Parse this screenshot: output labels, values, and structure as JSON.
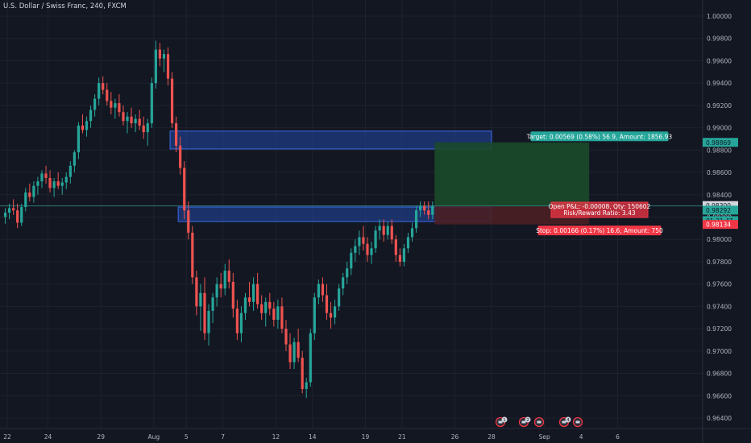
{
  "header": {
    "symbol_title": "U.S. Dollar / Swiss Franc, 240, FXCM"
  },
  "colors": {
    "background": "#131722",
    "grid": "#1e222d",
    "up": "#26a69a",
    "down": "#ef5350",
    "zone_fill": "#1f3b82",
    "zone_border": "#3b6cf0",
    "target_fill": "#1b4a2a",
    "stop_fill": "#4a1f24",
    "label_green": "#26a69a",
    "label_red": "#f23645"
  },
  "price_axis": {
    "min": 0.9634,
    "max": 1.0012,
    "ticks": [
      "1.00000",
      "0.99800",
      "0.99600",
      "0.99400",
      "0.99200",
      "0.99000",
      "0.98800",
      "0.98600",
      "0.98400",
      "0.98200",
      "0.98000",
      "0.97800",
      "0.97600",
      "0.97400",
      "0.97200",
      "0.97000",
      "0.96800",
      "0.96600",
      "0.96400"
    ],
    "markers": [
      {
        "label": "0.98869",
        "value": 0.98869,
        "color": "#26a69a",
        "text_color": "#131722"
      },
      {
        "label": "0.98300",
        "value": 0.98303,
        "color": "#d1d4dc",
        "text_color": "#131722"
      },
      {
        "label": "0.98292",
        "value": 0.98262,
        "color": "#26a69a",
        "text_color": "#131722"
      },
      {
        "label": "01:31:47",
        "value": 0.98168,
        "color": "#26a69a",
        "text_color": "#131722"
      },
      {
        "label": "0.98134",
        "value": 0.98134,
        "color": "#f23645",
        "text_color": "#ffffff"
      }
    ]
  },
  "time_axis": {
    "labels": [
      {
        "text": "22",
        "bar": 1
      },
      {
        "text": "24",
        "bar": 11
      },
      {
        "text": "29",
        "bar": 24
      },
      {
        "text": "Aug",
        "bar": 37
      },
      {
        "text": "5",
        "bar": 45
      },
      {
        "text": "7",
        "bar": 54
      },
      {
        "text": "12",
        "bar": 67
      },
      {
        "text": "14",
        "bar": 76
      },
      {
        "text": "19",
        "bar": 89
      },
      {
        "text": "21",
        "bar": 98
      },
      {
        "text": "26",
        "bar": 111
      },
      {
        "text": "28",
        "bar": 120
      },
      {
        "text": "Sep",
        "bar": 133
      },
      {
        "text": "4",
        "bar": 142
      },
      {
        "text": "6",
        "bar": 151
      }
    ]
  },
  "zones": [
    {
      "name": "upper-zone",
      "start_bar": 41,
      "end_bar": 120,
      "top": 0.9897,
      "bottom": 0.9881
    },
    {
      "name": "lower-zone",
      "start_bar": 43,
      "end_bar": 120,
      "top": 0.9829,
      "bottom": 0.9816
    }
  ],
  "position": {
    "start_bar": 106,
    "end_bar": 144,
    "entry": 0.983,
    "target": 0.98869,
    "stop": 0.98134,
    "target_label": "Target: 0.00569 (0.58%) 56.9, Amount: 1856.93",
    "open_label_1": "Open P&L: -0.00008, Qty: 150602",
    "open_label_2": "Risk/Reward Ratio: 3.43",
    "stop_label": "Stop: 0.00166 (0.17%) 16.6, Amount: 750"
  },
  "bottom_icons": [
    {
      "name": "news-icon",
      "badge": "1"
    },
    {
      "name": "news-icon",
      "badge": "2"
    },
    {
      "name": "flag-icon",
      "badge": ""
    },
    {
      "name": "news-icon",
      "badge": "4"
    },
    {
      "name": "flag-icon",
      "badge": ""
    }
  ],
  "chart_data": {
    "type": "candlestick",
    "title": "U.S. Dollar / Swiss Franc, 240, FXCM",
    "ylim": [
      0.9634,
      1.0012
    ],
    "candles": [
      [
        0.982,
        0.9828,
        0.9814,
        0.9824
      ],
      [
        0.9824,
        0.9832,
        0.9818,
        0.9828
      ],
      [
        0.9828,
        0.9836,
        0.9822,
        0.9826
      ],
      [
        0.9826,
        0.9832,
        0.981,
        0.9815
      ],
      [
        0.9815,
        0.9832,
        0.9812,
        0.9829
      ],
      [
        0.9829,
        0.9846,
        0.9825,
        0.9842
      ],
      [
        0.9842,
        0.985,
        0.9834,
        0.9838
      ],
      [
        0.9838,
        0.9852,
        0.9833,
        0.9848
      ],
      [
        0.9848,
        0.9856,
        0.984,
        0.9852
      ],
      [
        0.9852,
        0.9862,
        0.9846,
        0.9859
      ],
      [
        0.9859,
        0.9866,
        0.985,
        0.9855
      ],
      [
        0.9855,
        0.9862,
        0.9842,
        0.9846
      ],
      [
        0.9846,
        0.9855,
        0.9838,
        0.9852
      ],
      [
        0.9852,
        0.986,
        0.9845,
        0.9848
      ],
      [
        0.9848,
        0.9855,
        0.984,
        0.9851
      ],
      [
        0.9851,
        0.986,
        0.9845,
        0.9856
      ],
      [
        0.9856,
        0.987,
        0.985,
        0.9866
      ],
      [
        0.9866,
        0.988,
        0.986,
        0.9878
      ],
      [
        0.9878,
        0.9905,
        0.9872,
        0.9902
      ],
      [
        0.9902,
        0.9912,
        0.9895,
        0.9898
      ],
      [
        0.9898,
        0.991,
        0.9892,
        0.9906
      ],
      [
        0.9906,
        0.992,
        0.99,
        0.9916
      ],
      [
        0.9916,
        0.993,
        0.991,
        0.9926
      ],
      [
        0.9926,
        0.9945,
        0.992,
        0.994
      ],
      [
        0.994,
        0.9946,
        0.993,
        0.9934
      ],
      [
        0.9934,
        0.994,
        0.992,
        0.9924
      ],
      [
        0.9924,
        0.9932,
        0.9912,
        0.9918
      ],
      [
        0.9918,
        0.9926,
        0.9908,
        0.9922
      ],
      [
        0.9922,
        0.993,
        0.991,
        0.9914
      ],
      [
        0.9914,
        0.992,
        0.9902,
        0.9906
      ],
      [
        0.9906,
        0.9914,
        0.9895,
        0.991
      ],
      [
        0.991,
        0.9918,
        0.99,
        0.9904
      ],
      [
        0.9904,
        0.9912,
        0.9896,
        0.9908
      ],
      [
        0.9908,
        0.9916,
        0.9898,
        0.9902
      ],
      [
        0.9902,
        0.991,
        0.989,
        0.9896
      ],
      [
        0.9896,
        0.9908,
        0.9884,
        0.9904
      ],
      [
        0.9904,
        0.9945,
        0.99,
        0.994
      ],
      [
        0.994,
        0.9978,
        0.9935,
        0.997
      ],
      [
        0.997,
        0.9976,
        0.9955,
        0.9962
      ],
      [
        0.9962,
        0.997,
        0.995,
        0.9966
      ],
      [
        0.9966,
        0.9972,
        0.9938,
        0.9944
      ],
      [
        0.9944,
        0.995,
        0.99,
        0.9904
      ],
      [
        0.9904,
        0.991,
        0.9878,
        0.9884
      ],
      [
        0.9884,
        0.9892,
        0.9858,
        0.9864
      ],
      [
        0.9864,
        0.987,
        0.9818,
        0.9826
      ],
      [
        0.9826,
        0.9834,
        0.98,
        0.9806
      ],
      [
        0.9806,
        0.9812,
        0.976,
        0.9766
      ],
      [
        0.9766,
        0.9772,
        0.9732,
        0.974
      ],
      [
        0.974,
        0.976,
        0.9718,
        0.9752
      ],
      [
        0.9752,
        0.9766,
        0.971,
        0.9716
      ],
      [
        0.9716,
        0.9742,
        0.9705,
        0.9736
      ],
      [
        0.9736,
        0.9752,
        0.9725,
        0.9748
      ],
      [
        0.9748,
        0.9766,
        0.974,
        0.976
      ],
      [
        0.976,
        0.977,
        0.9748,
        0.9756
      ],
      [
        0.9756,
        0.9778,
        0.975,
        0.9772
      ],
      [
        0.9772,
        0.9782,
        0.9756,
        0.9762
      ],
      [
        0.9762,
        0.977,
        0.973,
        0.9738
      ],
      [
        0.9738,
        0.9746,
        0.971,
        0.9716
      ],
      [
        0.9716,
        0.974,
        0.9708,
        0.9734
      ],
      [
        0.9734,
        0.9752,
        0.9728,
        0.9748
      ],
      [
        0.9748,
        0.9762,
        0.974,
        0.9744
      ],
      [
        0.9744,
        0.9766,
        0.9736,
        0.976
      ],
      [
        0.976,
        0.977,
        0.9738,
        0.9742
      ],
      [
        0.9742,
        0.975,
        0.9728,
        0.9734
      ],
      [
        0.9734,
        0.9748,
        0.9722,
        0.9744
      ],
      [
        0.9744,
        0.9752,
        0.9732,
        0.9738
      ],
      [
        0.9738,
        0.9744,
        0.9722,
        0.9728
      ],
      [
        0.9728,
        0.9746,
        0.972,
        0.974
      ],
      [
        0.974,
        0.9748,
        0.9716,
        0.972
      ],
      [
        0.972,
        0.9728,
        0.97,
        0.9706
      ],
      [
        0.9706,
        0.9716,
        0.9684,
        0.969
      ],
      [
        0.969,
        0.9712,
        0.9684,
        0.9708
      ],
      [
        0.9708,
        0.972,
        0.969,
        0.9694
      ],
      [
        0.9694,
        0.97,
        0.9662,
        0.9666
      ],
      [
        0.9666,
        0.9676,
        0.9658,
        0.9672
      ],
      [
        0.9672,
        0.972,
        0.9668,
        0.9716
      ],
      [
        0.9716,
        0.9752,
        0.971,
        0.9748
      ],
      [
        0.9748,
        0.9764,
        0.9742,
        0.976
      ],
      [
        0.976,
        0.9766,
        0.9744,
        0.975
      ],
      [
        0.975,
        0.976,
        0.9728,
        0.9734
      ],
      [
        0.9734,
        0.9744,
        0.972,
        0.973
      ],
      [
        0.973,
        0.9746,
        0.9724,
        0.974
      ],
      [
        0.974,
        0.976,
        0.9736,
        0.9756
      ],
      [
        0.9756,
        0.977,
        0.975,
        0.9766
      ],
      [
        0.9766,
        0.978,
        0.976,
        0.9774
      ],
      [
        0.9774,
        0.9792,
        0.9768,
        0.9788
      ],
      [
        0.9788,
        0.98,
        0.978,
        0.9794
      ],
      [
        0.9794,
        0.9808,
        0.9786,
        0.9802
      ],
      [
        0.9802,
        0.9812,
        0.979,
        0.9796
      ],
      [
        0.9796,
        0.9802,
        0.978,
        0.9786
      ],
      [
        0.9786,
        0.9798,
        0.9778,
        0.9792
      ],
      [
        0.9792,
        0.9812,
        0.9788,
        0.9808
      ],
      [
        0.9808,
        0.9818,
        0.98,
        0.9812
      ],
      [
        0.9812,
        0.9818,
        0.9798,
        0.9804
      ],
      [
        0.9804,
        0.9816,
        0.98,
        0.9812
      ],
      [
        0.9812,
        0.9818,
        0.9796,
        0.98
      ],
      [
        0.98,
        0.9804,
        0.978,
        0.9786
      ],
      [
        0.9786,
        0.9792,
        0.9776,
        0.978
      ],
      [
        0.978,
        0.9796,
        0.9776,
        0.9792
      ],
      [
        0.9792,
        0.9806,
        0.9788,
        0.9802
      ],
      [
        0.9802,
        0.9815,
        0.9798,
        0.981
      ],
      [
        0.981,
        0.983,
        0.9806,
        0.9826
      ],
      [
        0.9826,
        0.9834,
        0.982,
        0.983
      ],
      [
        0.983,
        0.9834,
        0.9822,
        0.9826
      ],
      [
        0.9826,
        0.9834,
        0.9818,
        0.9822
      ],
      [
        0.9822,
        0.9834,
        0.9818,
        0.983
      ]
    ]
  }
}
